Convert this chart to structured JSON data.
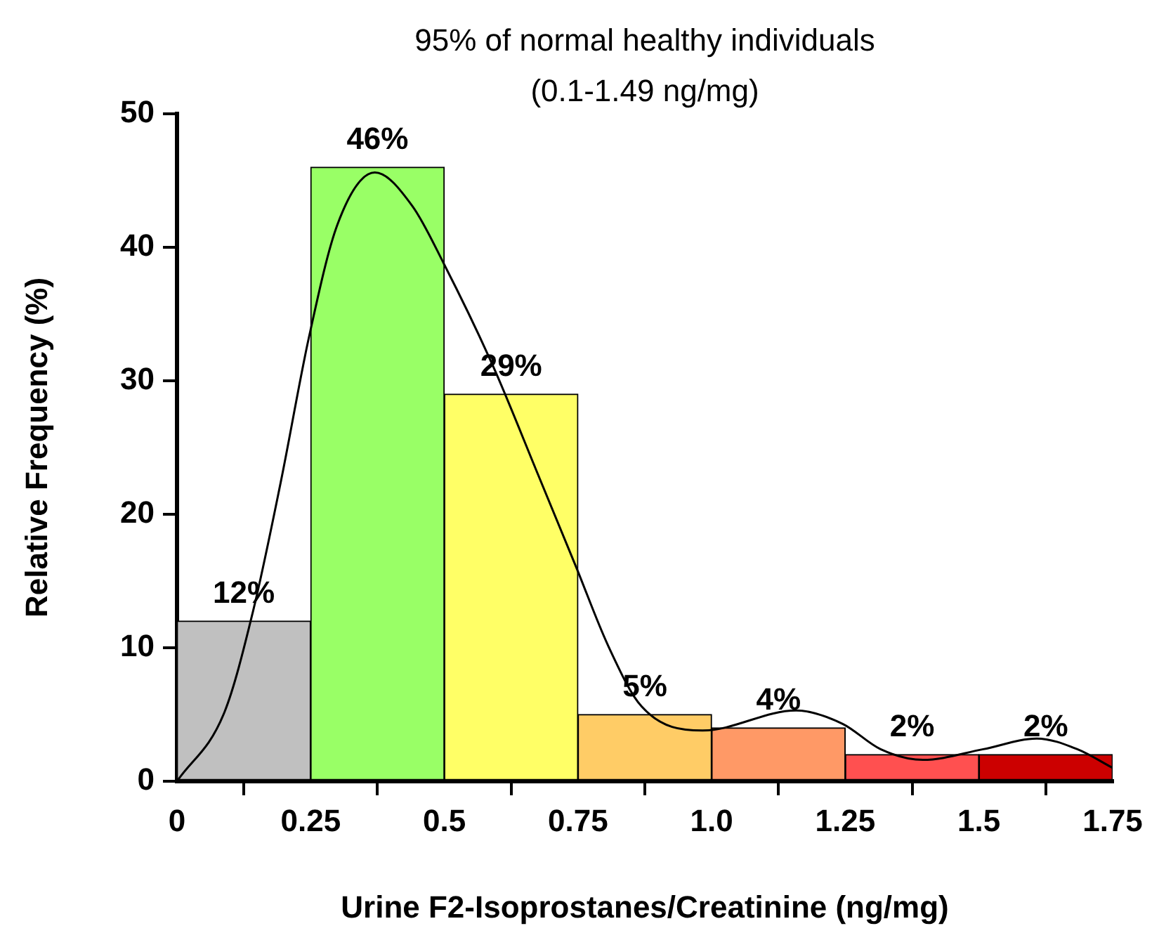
{
  "chart_data": {
    "type": "histogram",
    "title": "95% of normal healthy individuals",
    "subtitle": "(0.1-1.49 ng/mg)",
    "xlabel": "Urine F2-Isoprostanes/Creatinine (ng/mg)",
    "ylabel": "Relative Frequency (%)",
    "bins": [
      0,
      0.25,
      0.5,
      0.75,
      1,
      1.25,
      1.5,
      1.75
    ],
    "values": [
      12,
      46,
      29,
      5,
      4,
      2,
      2
    ],
    "value_labels": [
      "12%",
      "46%",
      "29%",
      "5%",
      "4%",
      "2%",
      "2%"
    ],
    "colors": [
      "#c0c0c0",
      "#99ff66",
      "#ffff66",
      "#ffcc66",
      "#ff9966",
      "#ff5050",
      "#cc0000"
    ],
    "series": [
      {
        "type": "line",
        "color": "#000000",
        "x": [
          0,
          0.089,
          0.142,
          0.194,
          0.247,
          0.3,
          0.37,
          0.44,
          0.5,
          0.59,
          0.675,
          0.746,
          0.807,
          0.869,
          0.983,
          1.158,
          1.245,
          1.316,
          1.395,
          1.508,
          1.608,
          1.684,
          1.75
        ],
        "values": [
          0,
          5.2,
          12.7,
          22.4,
          33.3,
          41.7,
          45.6,
          43.1,
          38.7,
          31.2,
          23,
          16.1,
          10.1,
          5.6,
          3.8,
          5.3,
          4.3,
          2.4,
          1.6,
          2.4,
          3.2,
          2.4,
          1
        ]
      }
    ],
    "xlim": [
      0,
      1.75
    ],
    "xticks": [
      0,
      0.25,
      0.5,
      0.75,
      {
        "value": 1,
        "label": "1.0"
      },
      1.25,
      1.5,
      1.75
    ],
    "ylim": [
      0,
      50
    ],
    "yticks": [
      0,
      10,
      20,
      30,
      40,
      50
    ],
    "grid": false,
    "legend": false,
    "marker": "none",
    "line_style": "solid"
  }
}
